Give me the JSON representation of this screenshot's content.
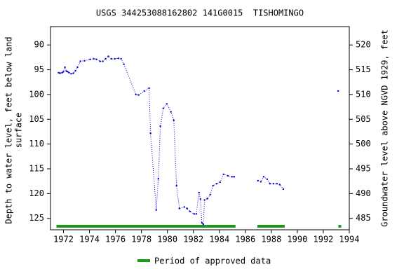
{
  "chart_data": {
    "type": "line",
    "title": "USGS 344253088162802 141G0015  TISHOMINGO",
    "ylabel": [
      "Depth to water level, feet below land",
      "surface"
    ],
    "y2label": "Groundwater level above NGVD 1929, feet",
    "x": [
      1971.62,
      1971.73,
      1971.89,
      1972.0,
      1972.11,
      1972.22,
      1972.32,
      1972.43,
      1972.59,
      1972.76,
      1972.92,
      1973.08,
      1973.3,
      1973.62,
      1974.05,
      1974.32,
      1974.54,
      1974.81,
      1975.03,
      1975.24,
      1975.46,
      1975.68,
      1975.95,
      1976.22,
      1976.43,
      1976.65,
      1977.57,
      1977.78,
      1978.22,
      1978.59,
      1978.7,
      1979.14,
      1979.3,
      1979.46,
      1979.68,
      1979.95,
      1980.27,
      1980.49,
      1980.7,
      1980.92,
      1981.3,
      1981.51,
      1981.73,
      1982.05,
      1982.22,
      1982.43,
      1982.54,
      1982.65,
      1982.76,
      1982.86,
      1983.08,
      1983.3,
      1983.51,
      1983.78,
      1984.05,
      1984.32,
      1984.65,
      1984.97,
      1985.14,
      1986.0,
      1986.97,
      1987.19,
      1987.41,
      1987.68,
      1987.89,
      1988.16,
      1988.43,
      1988.65,
      1988.92,
      1991.0,
      1993.14
    ],
    "series": [
      {
        "name": "Depth to water level",
        "color": "#0000cc",
        "values": [
          95.6,
          95.7,
          95.6,
          95.4,
          94.5,
          95.3,
          95.4,
          95.6,
          95.8,
          95.7,
          95.2,
          94.5,
          93.3,
          93.2,
          92.9,
          92.8,
          92.9,
          93.3,
          93.3,
          92.8,
          92.3,
          92.8,
          92.8,
          92.7,
          92.8,
          93.9,
          100.0,
          100.1,
          99.3,
          98.7,
          107.8,
          123.3,
          117.0,
          106.4,
          102.8,
          101.9,
          103.5,
          105.2,
          118.4,
          123.0,
          122.7,
          123.0,
          123.6,
          124.1,
          124.1,
          119.8,
          121.1,
          125.9,
          126.2,
          121.3,
          121.0,
          120.2,
          118.4,
          118.0,
          117.7,
          116.1,
          116.4,
          116.6,
          116.6,
          null,
          117.4,
          117.6,
          116.6,
          117.1,
          118.0,
          118.0,
          118.0,
          118.2,
          119.1,
          null,
          99.3
        ]
      }
    ],
    "xlim": [
      1971.0,
      1994.0
    ],
    "ylim": [
      127.3,
      86.3
    ],
    "y2lim": [
      482.7,
      523.7
    ],
    "xticks": [
      1972,
      1974,
      1976,
      1978,
      1980,
      1982,
      1984,
      1986,
      1988,
      1990,
      1992,
      1994
    ],
    "yticks": [
      90,
      95,
      100,
      105,
      110,
      115,
      120,
      125
    ],
    "y2ticks": [
      485,
      490,
      495,
      500,
      505,
      510,
      515,
      520
    ],
    "approved_periods": [
      [
        1971.46,
        1985.24
      ],
      [
        1986.92,
        1989.03
      ],
      [
        1993.16,
        1993.38
      ]
    ],
    "approved_color": "#1a9a1a",
    "legend": "Period of approved data"
  }
}
